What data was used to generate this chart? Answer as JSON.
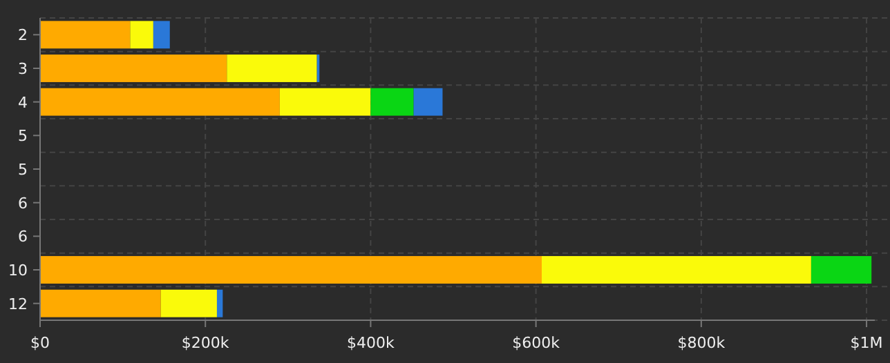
{
  "chart_data": {
    "type": "bar",
    "orientation": "horizontal",
    "stacked": true,
    "grid": true,
    "categories": [
      "2",
      "3",
      "4",
      "5",
      "5",
      "6",
      "6",
      "10",
      "12"
    ],
    "series": [
      {
        "color": "#ffaa00",
        "values": [
          109000,
          226000,
          290000,
          0,
          0,
          0,
          0,
          607000,
          146000
        ]
      },
      {
        "color": "#fafa0a",
        "values": [
          28000,
          109000,
          110000,
          0,
          0,
          0,
          0,
          326000,
          68000
        ]
      },
      {
        "color": "#0ad614",
        "values": [
          0,
          0,
          52000,
          0,
          0,
          0,
          0,
          73000,
          0
        ]
      },
      {
        "color": "#2a78d8",
        "values": [
          20000,
          3000,
          35000,
          0,
          0,
          0,
          0,
          0,
          7000
        ]
      }
    ],
    "xlim": [
      0,
      1010000
    ],
    "xticks": [
      {
        "value": 0,
        "label": "$0"
      },
      {
        "value": 200000,
        "label": "$200k"
      },
      {
        "value": 400000,
        "label": "$400k"
      },
      {
        "value": 600000,
        "label": "$600k"
      },
      {
        "value": 800000,
        "label": "$800k"
      },
      {
        "value": 1000000,
        "label": "$1M"
      }
    ]
  }
}
